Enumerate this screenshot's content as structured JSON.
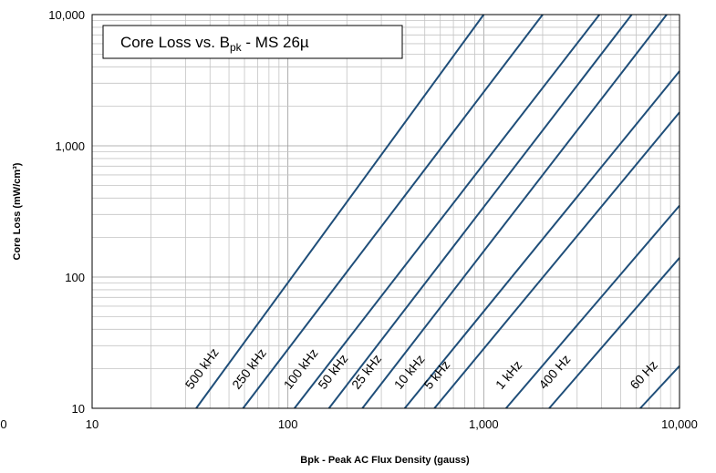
{
  "chart_data": {
    "type": "line",
    "title": "Core Loss vs. B",
    "title_subscript": "pk",
    "title_suffix": " - MS 26µ",
    "xlabel": "Bpk - Peak AC Flux Density (gauss)",
    "ylabel": "Core Loss (mW/cm³)",
    "x_scale": "log",
    "y_scale": "log",
    "xlim": [
      10,
      10000
    ],
    "ylim": [
      10,
      10000
    ],
    "x_ticks": [
      "10",
      "100",
      "1,000",
      "10,000"
    ],
    "x_ticks_values": [
      10,
      100,
      1000,
      10000
    ],
    "x_tick_extra": "0",
    "y_ticks": [
      "10",
      "100",
      "1,000",
      "10,000"
    ],
    "y_ticks_values": [
      10,
      100,
      1000,
      10000
    ],
    "grid": true,
    "line_color": "#1f4e79",
    "series": [
      {
        "name": "500 kHz",
        "points": [
          [
            34,
            10
          ],
          [
            1000,
            10000
          ]
        ]
      },
      {
        "name": "250 kHz",
        "points": [
          [
            59,
            10
          ],
          [
            2000,
            10000
          ]
        ]
      },
      {
        "name": "100 kHz",
        "points": [
          [
            108,
            10
          ],
          [
            3900,
            10000
          ]
        ]
      },
      {
        "name": "50 kHz",
        "points": [
          [
            162,
            10
          ],
          [
            5700,
            10000
          ]
        ]
      },
      {
        "name": "25 kHz",
        "points": [
          [
            240,
            10
          ],
          [
            8600,
            10000
          ]
        ]
      },
      {
        "name": "10 kHz",
        "points": [
          [
            395,
            10
          ],
          [
            10000,
            3700
          ]
        ]
      },
      {
        "name": "5 kHz",
        "points": [
          [
            560,
            10
          ],
          [
            10000,
            1800
          ]
        ]
      },
      {
        "name": "1 kHz",
        "points": [
          [
            1300,
            10
          ],
          [
            10000,
            350
          ]
        ]
      },
      {
        "name": "400 Hz",
        "points": [
          [
            2160,
            10
          ],
          [
            10000,
            140
          ]
        ]
      },
      {
        "name": "60 Hz",
        "points": [
          [
            6300,
            10
          ],
          [
            10000,
            21
          ]
        ]
      }
    ]
  }
}
